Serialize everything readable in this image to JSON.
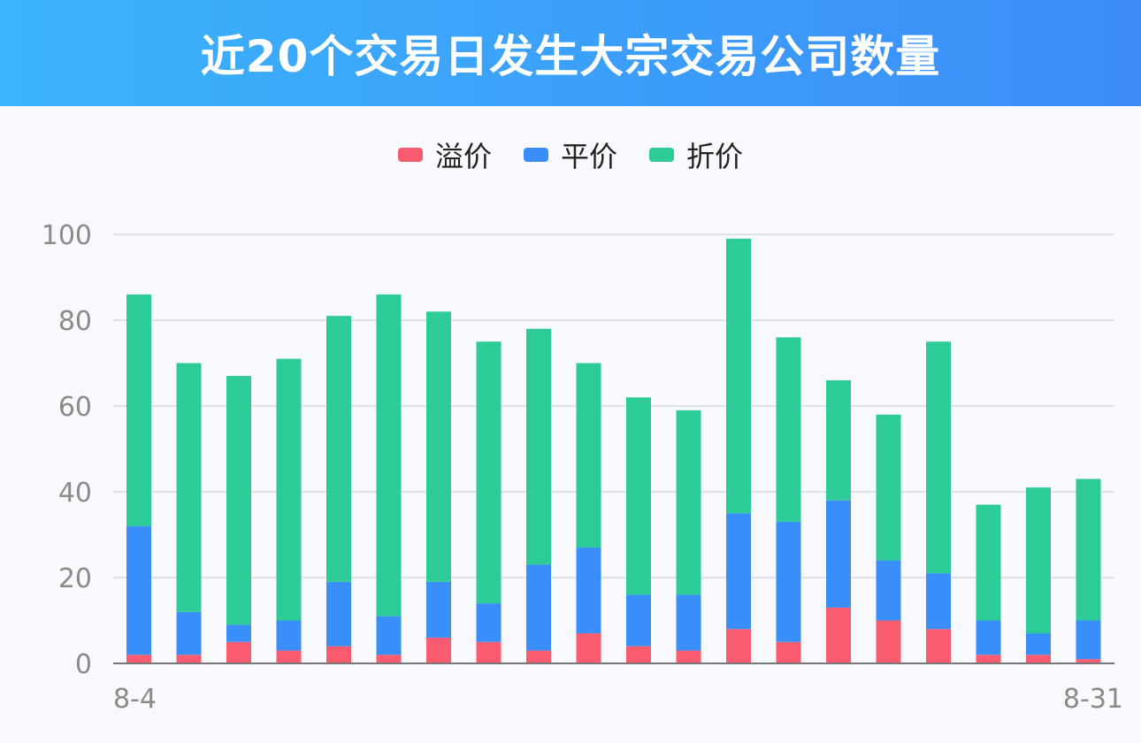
{
  "title": "近20个交易日发生大宗交易公司数量",
  "chart_data": {
    "type": "bar",
    "stacked": true,
    "categories": [
      "8-4",
      "",
      "",
      "",
      "",
      "",
      "",
      "",
      "",
      "",
      "",
      "",
      "",
      "",
      "",
      "",
      "",
      "",
      "",
      "8-31"
    ],
    "series": [
      {
        "name": "溢价",
        "color": "#fb5b6e",
        "values": [
          2,
          2,
          5,
          3,
          4,
          2,
          6,
          5,
          3,
          7,
          4,
          3,
          8,
          5,
          13,
          10,
          8,
          2,
          2,
          1
        ]
      },
      {
        "name": "平价",
        "color": "#3a8ef9",
        "values": [
          30,
          10,
          4,
          7,
          15,
          9,
          13,
          9,
          20,
          20,
          12,
          13,
          27,
          28,
          25,
          14,
          13,
          8,
          5,
          9
        ]
      },
      {
        "name": "折价",
        "color": "#2ccb97",
        "values": [
          54,
          58,
          58,
          61,
          62,
          75,
          63,
          61,
          55,
          43,
          46,
          43,
          64,
          43,
          28,
          34,
          54,
          27,
          34,
          33
        ]
      }
    ],
    "ylim": [
      0,
      100
    ],
    "yticks": [
      0,
      20,
      40,
      60,
      80,
      100
    ],
    "grid": true,
    "legend_position": "top-center",
    "xlabel": "",
    "ylabel": ""
  }
}
